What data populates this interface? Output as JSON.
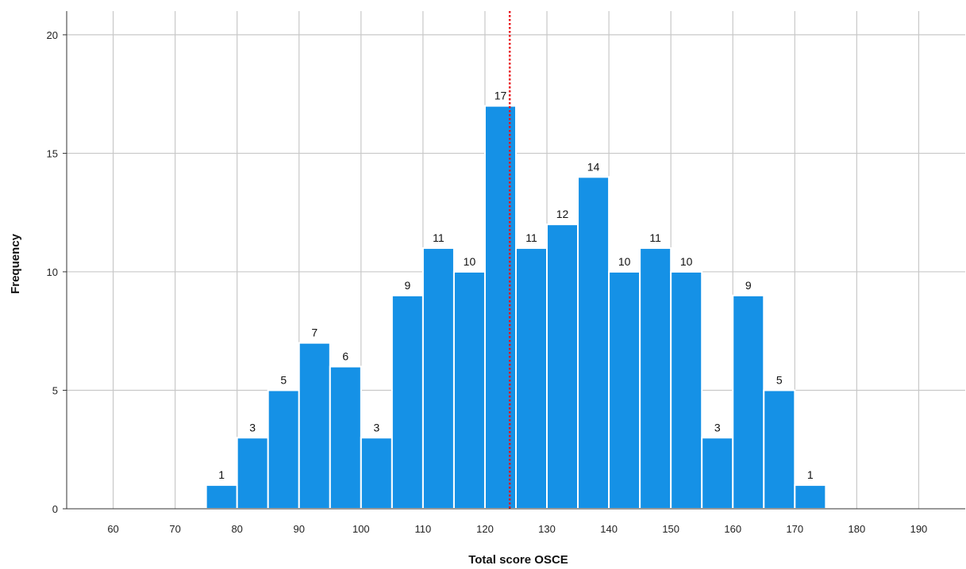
{
  "chart_data": {
    "type": "bar",
    "title": "",
    "xlabel": "Total score OSCE",
    "ylabel": "Frequency",
    "xlim": [
      52.5,
      197.5
    ],
    "ylim": [
      0,
      21
    ],
    "x_ticks": [
      60,
      70,
      80,
      90,
      100,
      110,
      120,
      130,
      140,
      150,
      160,
      170,
      180,
      190
    ],
    "y_ticks": [
      0,
      5,
      10,
      15,
      20
    ],
    "bin_width": 5,
    "bins": [
      {
        "start": 75,
        "end": 80,
        "value": 1
      },
      {
        "start": 80,
        "end": 85,
        "value": 3
      },
      {
        "start": 85,
        "end": 90,
        "value": 5
      },
      {
        "start": 90,
        "end": 95,
        "value": 7
      },
      {
        "start": 95,
        "end": 100,
        "value": 6
      },
      {
        "start": 100,
        "end": 105,
        "value": 3
      },
      {
        "start": 105,
        "end": 110,
        "value": 9
      },
      {
        "start": 110,
        "end": 115,
        "value": 11
      },
      {
        "start": 115,
        "end": 120,
        "value": 10
      },
      {
        "start": 120,
        "end": 125,
        "value": 17
      },
      {
        "start": 125,
        "end": 130,
        "value": 11
      },
      {
        "start": 130,
        "end": 135,
        "value": 12
      },
      {
        "start": 135,
        "end": 140,
        "value": 14
      },
      {
        "start": 140,
        "end": 145,
        "value": 10
      },
      {
        "start": 145,
        "end": 150,
        "value": 11
      },
      {
        "start": 150,
        "end": 155,
        "value": 10
      },
      {
        "start": 155,
        "end": 160,
        "value": 3
      },
      {
        "start": 160,
        "end": 165,
        "value": 9
      },
      {
        "start": 165,
        "end": 170,
        "value": 5
      },
      {
        "start": 170,
        "end": 175,
        "value": 1
      }
    ],
    "reference_line": {
      "x": 124,
      "style": "dotted",
      "color": "#e8141b"
    },
    "bar_color": "#1591e6",
    "bar_edge_color": "#ffffff",
    "grid": true,
    "legend": "none"
  }
}
